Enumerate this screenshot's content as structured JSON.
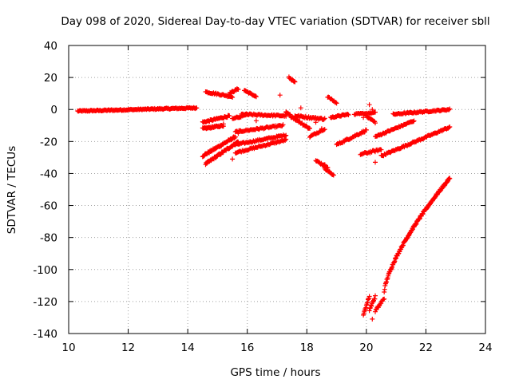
{
  "chart_data": {
    "type": "scatter",
    "title": "Day 098 of 2020, Sidereal Day-to-day VTEC variation (SDTVAR) for receiver sbll",
    "xlabel": "GPS time / hours",
    "ylabel": "SDTVAR / TECUs",
    "xlim": [
      10,
      24
    ],
    "ylim": [
      -140,
      40
    ],
    "xticks": [
      10,
      12,
      14,
      16,
      18,
      20,
      22,
      24
    ],
    "yticks": [
      40,
      20,
      0,
      -20,
      -40,
      -60,
      -80,
      -100,
      -120,
      -140
    ],
    "grid": true,
    "marker": "+",
    "color": "#ff0000",
    "series": [
      {
        "name": "arc-1",
        "x0": 10.3,
        "x1": 14.3,
        "y0": -1,
        "y1": 1,
        "n": 160,
        "jitter": 0.8
      },
      {
        "name": "arc-2",
        "x0": 14.5,
        "x1": 15.6,
        "y0": -29,
        "y1": -17,
        "n": 60,
        "jitter": 1.2
      },
      {
        "name": "arc-3",
        "x0": 14.6,
        "x1": 15.7,
        "y0": -34,
        "y1": -20,
        "n": 60,
        "jitter": 1.2
      },
      {
        "name": "arc-4",
        "x0": 14.5,
        "x1": 15.4,
        "y0": -8,
        "y1": -4,
        "n": 40,
        "jitter": 1.0
      },
      {
        "name": "arc-5",
        "x0": 14.5,
        "x1": 15.2,
        "y0": -12,
        "y1": -10,
        "n": 40,
        "jitter": 1.0
      },
      {
        "name": "arc-6",
        "x0": 14.6,
        "x1": 15.5,
        "y0": 11,
        "y1": 8,
        "n": 35,
        "jitter": 1.0
      },
      {
        "name": "arc-7",
        "x0": 15.4,
        "x1": 15.7,
        "y0": 10,
        "y1": 13,
        "n": 15,
        "jitter": 1.0
      },
      {
        "name": "arc-8",
        "x0": 15.9,
        "x1": 16.3,
        "y0": 12,
        "y1": 8,
        "n": 20,
        "jitter": 0.8
      },
      {
        "name": "arc-9",
        "x0": 15.6,
        "x1": 17.3,
        "y0": -22,
        "y1": -16,
        "n": 60,
        "jitter": 1.0
      },
      {
        "name": "arc-10",
        "x0": 15.6,
        "x1": 17.3,
        "y0": -27,
        "y1": -19,
        "n": 60,
        "jitter": 1.0
      },
      {
        "name": "arc-11",
        "x0": 15.6,
        "x1": 17.2,
        "y0": -14,
        "y1": -10,
        "n": 55,
        "jitter": 1.0
      },
      {
        "name": "arc-12",
        "x0": 15.8,
        "x1": 17.3,
        "y0": -3,
        "y1": -4,
        "n": 55,
        "jitter": 1.0
      },
      {
        "name": "arc-13",
        "x0": 15.5,
        "x1": 16.0,
        "y0": -6,
        "y1": -3,
        "n": 20,
        "jitter": 1.0
      },
      {
        "name": "arc-14",
        "x0": 17.4,
        "x1": 17.6,
        "y0": 20,
        "y1": 17,
        "n": 12,
        "jitter": 0.8
      },
      {
        "name": "arc-15",
        "x0": 17.3,
        "x1": 18.1,
        "y0": -2,
        "y1": -12,
        "n": 35,
        "jitter": 1.5
      },
      {
        "name": "arc-16",
        "x0": 17.6,
        "x1": 18.6,
        "y0": -4,
        "y1": -6,
        "n": 40,
        "jitter": 1.2
      },
      {
        "name": "arc-17",
        "x0": 18.1,
        "x1": 18.6,
        "y0": -17,
        "y1": -12,
        "n": 20,
        "jitter": 1.0
      },
      {
        "name": "arc-18",
        "x0": 18.3,
        "x1": 18.7,
        "y0": -32,
        "y1": -36,
        "n": 18,
        "jitter": 1.2
      },
      {
        "name": "arc-19",
        "x0": 18.6,
        "x1": 18.9,
        "y0": -37,
        "y1": -41,
        "n": 14,
        "jitter": 1.0
      },
      {
        "name": "arc-20",
        "x0": 18.7,
        "x1": 19.0,
        "y0": 8,
        "y1": 4,
        "n": 12,
        "jitter": 0.8
      },
      {
        "name": "arc-21",
        "x0": 18.8,
        "x1": 19.4,
        "y0": -5,
        "y1": -3,
        "n": 25,
        "jitter": 0.8
      },
      {
        "name": "arc-22",
        "x0": 19.0,
        "x1": 20.0,
        "y0": -22,
        "y1": -13,
        "n": 40,
        "jitter": 1.2
      },
      {
        "name": "arc-23",
        "x0": 19.6,
        "x1": 20.3,
        "y0": -3,
        "y1": -2,
        "n": 25,
        "jitter": 0.8
      },
      {
        "name": "arc-24",
        "x0": 19.8,
        "x1": 20.5,
        "y0": -28,
        "y1": -25,
        "n": 25,
        "jitter": 1.2
      },
      {
        "name": "arc-25",
        "x0": 20.0,
        "x1": 20.3,
        "y0": -4,
        "y1": -8,
        "n": 15,
        "jitter": 1.0
      },
      {
        "name": "arc-26",
        "x0": 20.3,
        "x1": 21.6,
        "y0": -17,
        "y1": -7,
        "n": 55,
        "jitter": 1.0
      },
      {
        "name": "arc-27",
        "x0": 20.5,
        "x1": 22.8,
        "y0": -29,
        "y1": -11,
        "n": 90,
        "jitter": 1.0
      },
      {
        "name": "arc-28",
        "x0": 20.9,
        "x1": 22.8,
        "y0": -3,
        "y1": 0,
        "n": 70,
        "jitter": 0.8
      },
      {
        "name": "arc-29",
        "x0": 19.9,
        "x1": 20.1,
        "y0": -128,
        "y1": -117,
        "n": 15,
        "jitter": 1.5
      },
      {
        "name": "arc-30",
        "x0": 20.1,
        "x1": 20.3,
        "y0": -125,
        "y1": -117,
        "n": 12,
        "jitter": 1.5
      },
      {
        "name": "arc-31",
        "x0": 20.3,
        "x1": 20.6,
        "y0": -126,
        "y1": -118,
        "n": 15,
        "jitter": 1.5
      },
      {
        "name": "arc-32",
        "x0": 20.6,
        "x1": 22.8,
        "y0": -114,
        "y1": -43,
        "n": 150,
        "jitter": 1.2,
        "curve": 0.7
      }
    ],
    "outliers": [
      {
        "x": 15.5,
        "y": -31
      },
      {
        "x": 15.7,
        "y": -15
      },
      {
        "x": 15.2,
        "y": -9
      },
      {
        "x": 17.1,
        "y": 9
      },
      {
        "x": 17.0,
        "y": -20
      },
      {
        "x": 17.8,
        "y": 1
      },
      {
        "x": 18.3,
        "y": -8
      },
      {
        "x": 18.5,
        "y": -12
      },
      {
        "x": 19.9,
        "y": -5
      },
      {
        "x": 20.1,
        "y": 3
      },
      {
        "x": 20.2,
        "y": 0
      },
      {
        "x": 20.3,
        "y": -33
      },
      {
        "x": 20.2,
        "y": -131
      },
      {
        "x": 16.3,
        "y": -7
      }
    ]
  }
}
